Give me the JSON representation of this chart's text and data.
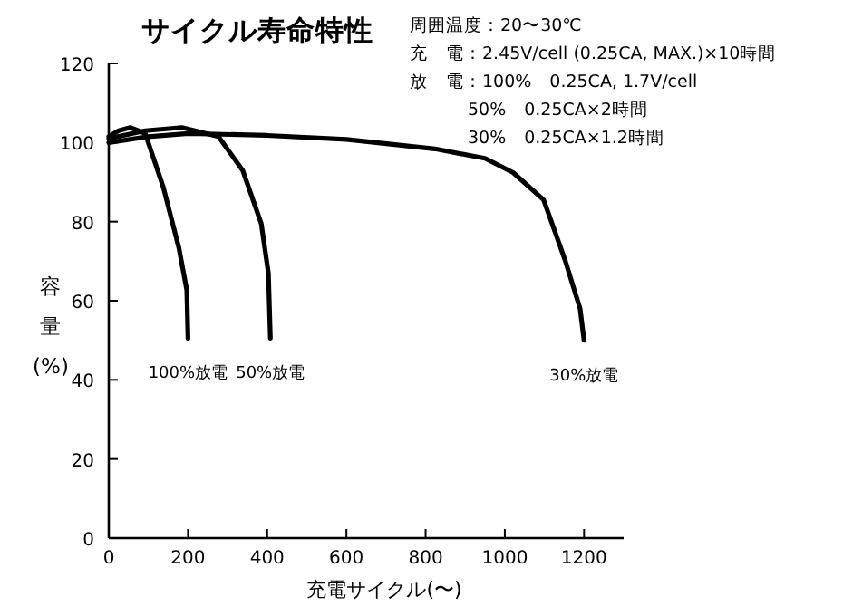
{
  "chart_data": {
    "type": "line",
    "title": "サイクル寿命特性",
    "xlabel": "充電サイクル(〜)",
    "ylabel": "容量(%)",
    "xlim": [
      0,
      1300
    ],
    "xticks": [
      0,
      200,
      400,
      600,
      800,
      1000,
      1200
    ],
    "ylim": [
      0,
      120
    ],
    "yticks": [
      0,
      20,
      40,
      60,
      80,
      100,
      120
    ],
    "grid": false,
    "marker": "none",
    "line_style": "solid",
    "annotations": [
      "周囲温度：20〜30℃",
      "充　電：2.45V/cell (0.25CA, MAX.)×10時間",
      "放　電：100%　0.25CA, 1.7V/cell",
      "50%　0.25CA×2時間",
      "30%　0.25CA×1.2時間"
    ],
    "series": [
      {
        "name": "100%放電",
        "color": "#000000",
        "x": [
          0,
          25,
          54,
          92,
          138,
          177,
          197,
          200
        ],
        "values": [
          101.5,
          103,
          103.8,
          102.3,
          88.6,
          73.4,
          62.7,
          50.5
        ]
      },
      {
        "name": "50%放電",
        "color": "#000000",
        "x": [
          0,
          92,
          185,
          277,
          338,
          385,
          403,
          408
        ],
        "values": [
          101,
          103,
          103.8,
          101.5,
          93,
          79.5,
          67,
          50.5
        ]
      },
      {
        "name": "30%放電",
        "color": "#000000",
        "x": [
          0,
          100,
          200,
          400,
          600,
          824,
          950,
          1021,
          1098,
          1152,
          1190,
          1200
        ],
        "values": [
          100,
          101.5,
          102.3,
          101.8,
          100.8,
          98.4,
          96,
          92.4,
          85.5,
          70.3,
          58,
          50
        ]
      }
    ]
  }
}
